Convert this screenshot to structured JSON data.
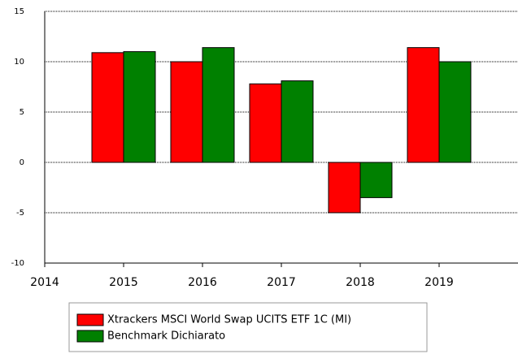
{
  "chart_data": {
    "type": "bar",
    "x": [
      2015,
      2016,
      2017,
      2018,
      2019
    ],
    "series": [
      {
        "name": "Xtrackers MSCI World Swap UCITS ETF 1C (MI)",
        "color": "#ff0000",
        "values": [
          10.9,
          10.0,
          7.8,
          -5.0,
          11.4
        ]
      },
      {
        "name": "Benchmark Dichiarato",
        "color": "#008000",
        "values": [
          11.0,
          11.4,
          8.1,
          -3.5,
          10.0
        ]
      }
    ],
    "xlim": [
      2014,
      2020
    ],
    "xticks": [
      2014,
      2015,
      2016,
      2017,
      2018,
      2019
    ],
    "ylim": [
      -10,
      15
    ],
    "yticks": [
      -10,
      -5,
      0,
      5,
      10,
      15
    ],
    "grid": true
  }
}
